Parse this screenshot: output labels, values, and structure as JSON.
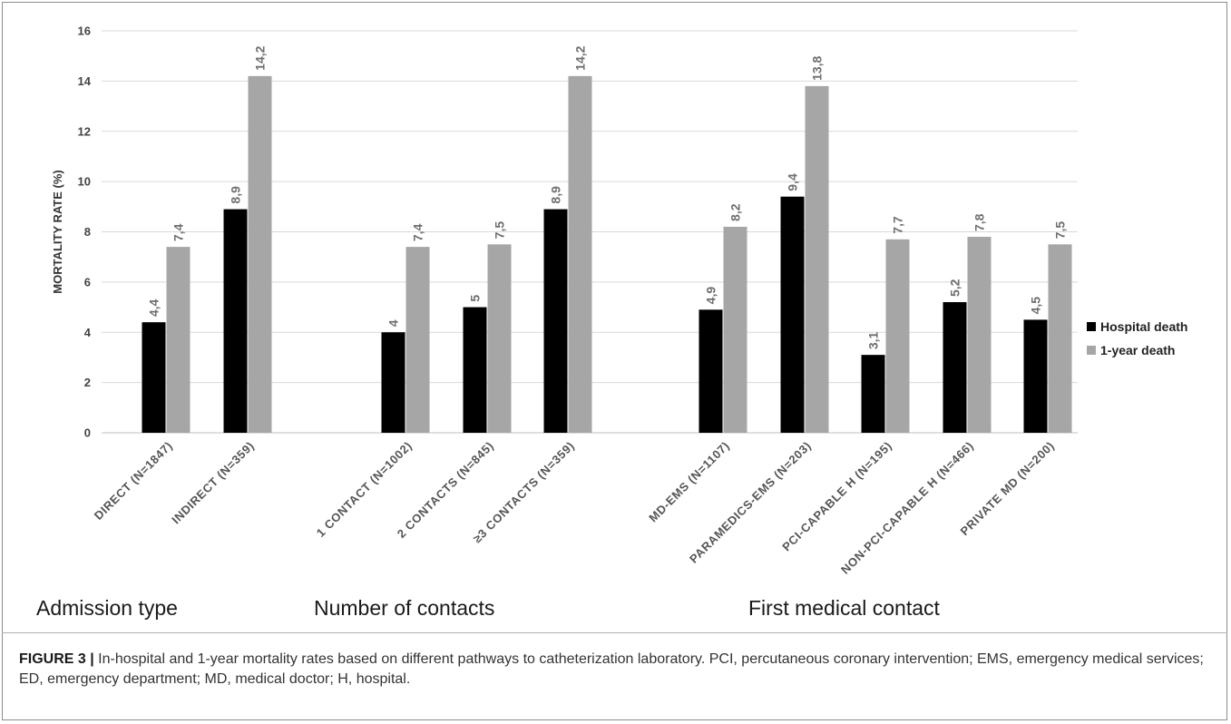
{
  "chart_data": {
    "type": "bar",
    "ylabel": "MORTALITY RATE (%)",
    "ylim": [
      0,
      16
    ],
    "yticks": [
      0,
      2,
      4,
      6,
      8,
      10,
      12,
      14,
      16
    ],
    "grid": true,
    "legend_position": "right",
    "categories": [
      "DIRECT (N=1847)",
      "INDIRECT (N=359)",
      "1 CONTACT (N=1002)",
      "2 CONTACTS (N=845)",
      "≥3 CONTACTS (N=359)",
      "MD-EMS (N=1107)",
      "PARAMEDICS-EMS (N=203)",
      "PCI-CAPABLE H (N=195)",
      "NON-PCI-CAPABLE H (N=466)",
      "PRIVATE MD (N=200)"
    ],
    "series": [
      {
        "name": "Hospital death",
        "color": "#000000",
        "values": [
          4.4,
          8.9,
          4,
          5,
          8.9,
          4.9,
          9.4,
          3.1,
          5.2,
          4.5
        ],
        "labels": [
          "4,4",
          "8,9",
          "4",
          "5",
          "8,9",
          "4,9",
          "9,4",
          "3,1",
          "5,2",
          "4,5"
        ]
      },
      {
        "name": "1-year death",
        "color": "#a6a6a6",
        "values": [
          7.4,
          14.2,
          7.4,
          7.5,
          14.2,
          8.2,
          13.8,
          7.7,
          7.8,
          7.5
        ],
        "labels": [
          "7,4",
          "14,2",
          "7,4",
          "7,5",
          "14,2",
          "8,2",
          "13,8",
          "7,7",
          "7,8",
          "7,5"
        ]
      }
    ],
    "groups": [
      {
        "name": "Admission type",
        "categories": [
          0,
          1
        ]
      },
      {
        "name": "Number of contacts",
        "categories": [
          2,
          3,
          4
        ]
      },
      {
        "name": "First medical contact",
        "categories": [
          5,
          6,
          7,
          8,
          9
        ]
      }
    ]
  },
  "caption": {
    "label": "FIGURE 3 |",
    "text": "In-hospital and 1-year mortality rates based on different pathways to catheterization laboratory. PCI, percutaneous coronary intervention; EMS, emergency medical services; ED, emergency department; MD, medical doctor; H, hospital."
  }
}
